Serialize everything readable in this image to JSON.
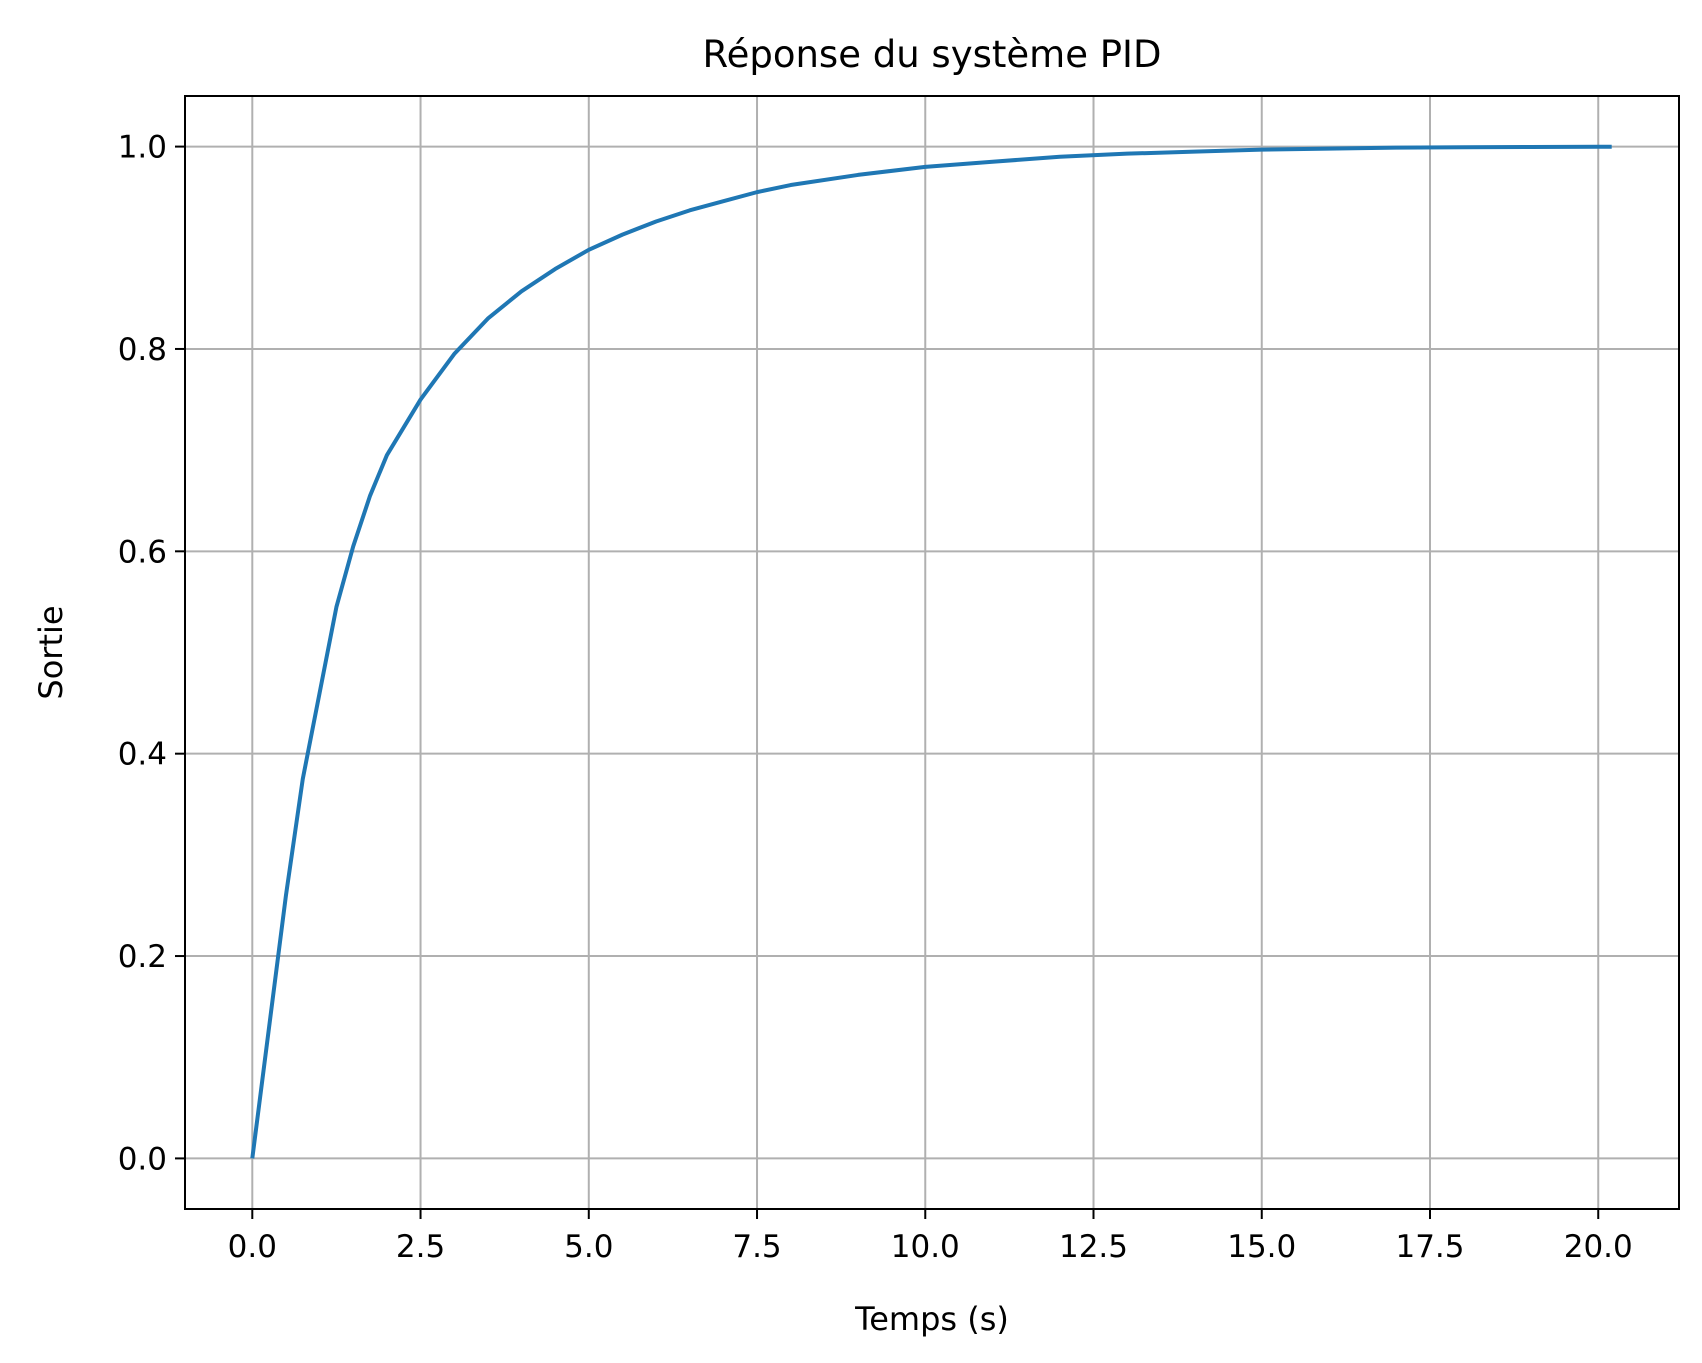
{
  "chart_data": {
    "type": "line",
    "title": "Réponse du système PID",
    "xlabel": "Temps (s)",
    "ylabel": "Sortie",
    "xlim": [
      -1.0,
      21.2
    ],
    "ylim": [
      -0.05,
      1.05
    ],
    "grid": true,
    "xticks": [
      0.0,
      2.5,
      5.0,
      7.5,
      10.0,
      12.5,
      15.0,
      17.5,
      20.0
    ],
    "xtick_labels": [
      "0.0",
      "2.5",
      "5.0",
      "7.5",
      "10.0",
      "12.5",
      "15.0",
      "17.5",
      "20.0"
    ],
    "yticks": [
      0.0,
      0.2,
      0.4,
      0.6,
      0.8,
      1.0
    ],
    "ytick_labels": [
      "0.0",
      "0.2",
      "0.4",
      "0.6",
      "0.8",
      "1.0"
    ],
    "series": [
      {
        "color": "#1f77b4",
        "x": [
          0,
          0.25,
          0.5,
          0.75,
          1.0,
          1.25,
          1.5,
          1.75,
          2.0,
          2.5,
          3.0,
          3.5,
          4.0,
          4.5,
          5.0,
          5.5,
          6.0,
          6.5,
          7.0,
          7.5,
          8.0,
          9.0,
          10.0,
          11.0,
          12.0,
          13.0,
          14.0,
          15.0,
          16.0,
          17.0,
          18.0,
          19.0,
          20.0,
          20.2
        ],
        "y": [
          0.0,
          0.13,
          0.26,
          0.375,
          0.46,
          0.545,
          0.605,
          0.655,
          0.695,
          0.75,
          0.795,
          0.83,
          0.857,
          0.879,
          0.898,
          0.913,
          0.926,
          0.937,
          0.946,
          0.955,
          0.962,
          0.972,
          0.98,
          0.985,
          0.99,
          0.993,
          0.995,
          0.997,
          0.998,
          0.999,
          0.9993,
          0.9996,
          0.9998,
          0.9999
        ]
      }
    ]
  }
}
